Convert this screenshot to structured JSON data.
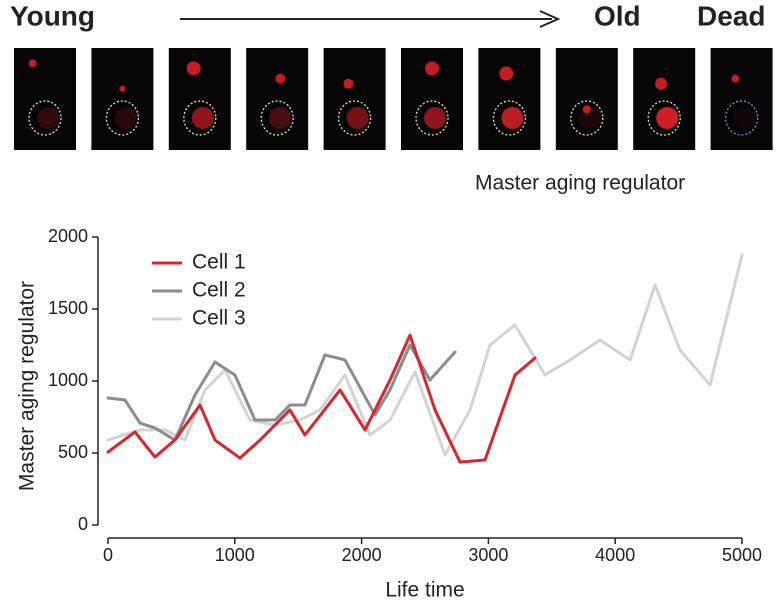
{
  "header": {
    "stages": [
      "Young",
      "Old",
      "Dead"
    ],
    "caption": "Master aging regulator"
  },
  "chart_data": {
    "type": "line",
    "xlabel": "Life time",
    "ylabel": "Master aging regulator",
    "xlim": [
      0,
      5000
    ],
    "xticks": [
      0,
      1000,
      2000,
      3000,
      4000,
      5000
    ],
    "ylim": [
      0,
      2000
    ],
    "yticks": [
      0,
      500,
      1000,
      1500,
      2000
    ],
    "legend": "upper left",
    "series": [
      {
        "name": "Cell 1",
        "color": "#d7262e",
        "x": [
          0,
          213,
          370,
          528,
          726,
          844,
          1041,
          1199,
          1435,
          1553,
          1830,
          2027,
          2224,
          2382,
          2579,
          2776,
          2973,
          3210,
          3368
        ],
        "values": [
          507,
          646,
          472,
          590,
          833,
          590,
          465,
          590,
          799,
          625,
          938,
          660,
          1007,
          1319,
          799,
          437,
          451,
          1042,
          1160
        ]
      },
      {
        "name": "Cell 2",
        "color": "#8c8c8c",
        "x": [
          0,
          134,
          252,
          370,
          528,
          686,
          844,
          1001,
          1159,
          1317,
          1435,
          1553,
          1711,
          1869,
          2106,
          2224,
          2382,
          2539,
          2737
        ],
        "values": [
          882,
          868,
          708,
          674,
          590,
          903,
          1132,
          1042,
          729,
          729,
          833,
          833,
          1181,
          1146,
          764,
          938,
          1250,
          1007,
          1201
        ]
      },
      {
        "name": "Cell 3",
        "color": "#d3d3d3",
        "x": [
          0,
          252,
          450,
          607,
          765,
          923,
          1120,
          1317,
          1514,
          1672,
          1869,
          2066,
          2224,
          2421,
          2658,
          2855,
          3013,
          3210,
          3446,
          3643,
          3880,
          4117,
          4314,
          4511,
          4748,
          5000
        ],
        "values": [
          590,
          660,
          660,
          590,
          938,
          1076,
          729,
          694,
          729,
          799,
          1042,
          625,
          729,
          1063,
          486,
          799,
          1250,
          1389,
          1042,
          1146,
          1285,
          1146,
          1667,
          1215,
          972,
          1875
        ]
      }
    ]
  }
}
